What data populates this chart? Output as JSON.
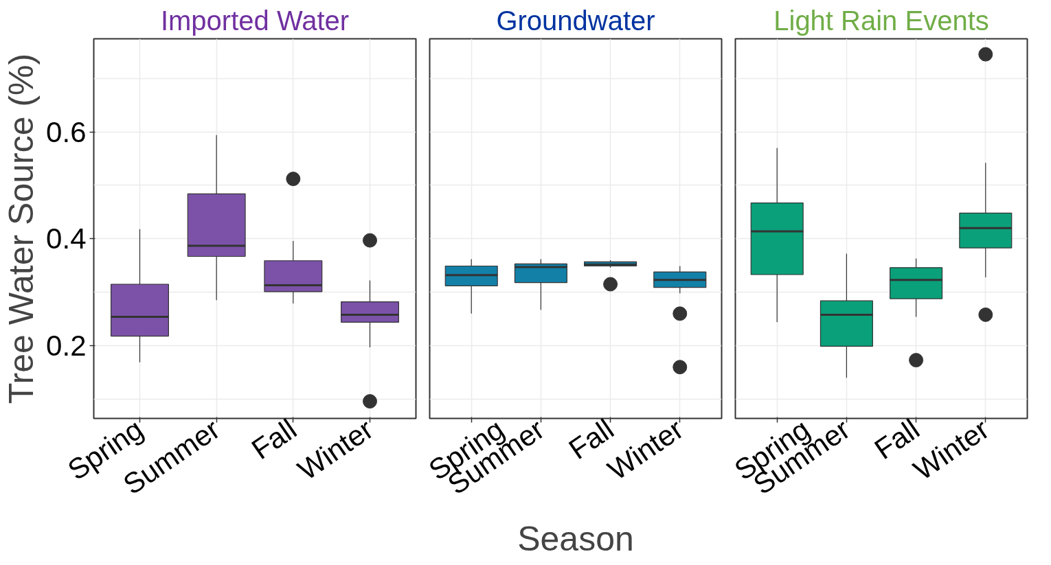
{
  "chart_data": [
    {
      "type": "box",
      "title": "Imported Water",
      "ylabel": "Tree Water Source (%)",
      "categories": [
        "Spring",
        "Summer",
        "Fall",
        "Winter"
      ],
      "ylim": [
        0.064,
        0.774
      ],
      "yticks": [
        0.2,
        0.4,
        0.6
      ],
      "grid": true,
      "series": [
        {
          "color": "#7b52a8",
          "boxes": [
            {
              "low": 0.169,
              "q1": 0.218,
              "median": 0.254,
              "q3": 0.315,
              "high": 0.418
            },
            {
              "low": 0.285,
              "q1": 0.367,
              "median": 0.387,
              "q3": 0.484,
              "high": 0.594
            },
            {
              "low": 0.279,
              "q1": 0.301,
              "median": 0.313,
              "q3": 0.359,
              "high": 0.396,
              "outliers": [
                0.512
              ]
            },
            {
              "low": 0.197,
              "q1": 0.244,
              "median": 0.258,
              "q3": 0.282,
              "high": 0.322,
              "outliers": [
                0.397,
                0.096
              ]
            }
          ]
        }
      ]
    },
    {
      "type": "box",
      "title": "Groundwater",
      "xlabel": "Season",
      "categories": [
        "Spring",
        "Summer",
        "Fall",
        "Winter"
      ],
      "ylim": [
        0.064,
        0.774
      ],
      "yticks": [
        0.2,
        0.4,
        0.6
      ],
      "grid": true,
      "tick_labels": "x",
      "series": [
        {
          "color": "#1380a8",
          "boxes": [
            {
              "low": 0.26,
              "q1": 0.312,
              "median": 0.332,
              "q3": 0.349,
              "high": 0.362
            },
            {
              "low": 0.267,
              "q1": 0.318,
              "median": 0.347,
              "q3": 0.353,
              "high": 0.362
            },
            {
              "low": 0.346,
              "q1": 0.349,
              "median": 0.352,
              "q3": 0.357,
              "high": 0.36,
              "outliers": [
                0.315
              ]
            },
            {
              "low": 0.298,
              "q1": 0.309,
              "median": 0.323,
              "q3": 0.338,
              "high": 0.349,
              "outliers": [
                0.26,
                0.16
              ]
            }
          ]
        }
      ]
    },
    {
      "type": "box",
      "title": "Light Rain Events",
      "categories": [
        "Spring",
        "Summer",
        "Fall",
        "Winter"
      ],
      "ylim": [
        0.064,
        0.774
      ],
      "yticks": [
        0.2,
        0.4,
        0.6
      ],
      "grid": true,
      "tick_labels": "x",
      "series": [
        {
          "color": "#0aa07a",
          "boxes": [
            {
              "low": 0.244,
              "q1": 0.333,
              "median": 0.414,
              "q3": 0.467,
              "high": 0.57
            },
            {
              "low": 0.14,
              "q1": 0.199,
              "median": 0.258,
              "q3": 0.284,
              "high": 0.372
            },
            {
              "low": 0.254,
              "q1": 0.288,
              "median": 0.323,
              "q3": 0.346,
              "high": 0.363,
              "outliers": [
                0.173
              ]
            },
            {
              "low": 0.328,
              "q1": 0.383,
              "median": 0.42,
              "q3": 0.448,
              "high": 0.542,
              "outliers": [
                0.745,
                0.258
              ]
            }
          ]
        }
      ]
    }
  ]
}
